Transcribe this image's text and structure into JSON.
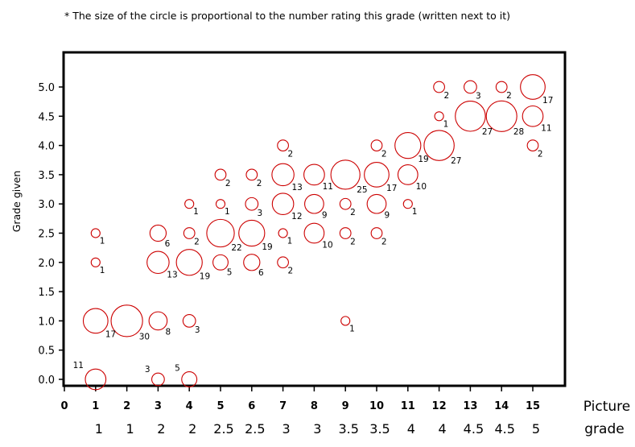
{
  "chart_data": {
    "type": "scatter",
    "title": "* The size of the circle is proportional to the number rating this grade (written next to it)",
    "xlabel": [
      "Picture",
      "grade"
    ],
    "ylabel": "Grade given",
    "xlim": [
      0,
      16
    ],
    "ylim": [
      -0.1,
      5.45
    ],
    "x_ticks": [
      0,
      1,
      2,
      3,
      4,
      5,
      6,
      7,
      8,
      9,
      10,
      11,
      12,
      13,
      14,
      15
    ],
    "y_ticks": [
      "0.0",
      "0.5",
      "1.0",
      "1.5",
      "2.0",
      "2.5",
      "3.0",
      "3.5",
      "4.0",
      "4.5",
      "5.0"
    ],
    "picture_grades": [
      "1",
      "1",
      "2",
      "2",
      "2.5",
      "2.5",
      "3",
      "3",
      "3.5",
      "3.5",
      "4",
      "4",
      "4.5",
      "4.5",
      "5"
    ],
    "grid": false,
    "points": [
      {
        "x": 1,
        "y": 0.0,
        "n": 11
      },
      {
        "x": 1,
        "y": 1.0,
        "n": 17
      },
      {
        "x": 1,
        "y": 2.0,
        "n": 1
      },
      {
        "x": 1,
        "y": 2.5,
        "n": 1
      },
      {
        "x": 2,
        "y": 1.0,
        "n": 30
      },
      {
        "x": 3,
        "y": 0.0,
        "n": 3
      },
      {
        "x": 3,
        "y": 1.0,
        "n": 8
      },
      {
        "x": 3,
        "y": 2.0,
        "n": 13
      },
      {
        "x": 3,
        "y": 2.5,
        "n": 6
      },
      {
        "x": 4,
        "y": 0.0,
        "n": 5
      },
      {
        "x": 4,
        "y": 1.0,
        "n": 3
      },
      {
        "x": 4,
        "y": 2.0,
        "n": 19
      },
      {
        "x": 4,
        "y": 2.5,
        "n": 2
      },
      {
        "x": 4,
        "y": 3.0,
        "n": 1
      },
      {
        "x": 5,
        "y": 2.0,
        "n": 5
      },
      {
        "x": 5,
        "y": 2.5,
        "n": 22
      },
      {
        "x": 5,
        "y": 3.0,
        "n": 1
      },
      {
        "x": 5,
        "y": 3.5,
        "n": 2
      },
      {
        "x": 6,
        "y": 2.0,
        "n": 6
      },
      {
        "x": 6,
        "y": 2.5,
        "n": 19
      },
      {
        "x": 6,
        "y": 3.0,
        "n": 3
      },
      {
        "x": 6,
        "y": 3.5,
        "n": 2
      },
      {
        "x": 7,
        "y": 2.0,
        "n": 2
      },
      {
        "x": 7,
        "y": 2.5,
        "n": 1
      },
      {
        "x": 7,
        "y": 3.0,
        "n": 12
      },
      {
        "x": 7,
        "y": 3.5,
        "n": 13
      },
      {
        "x": 7,
        "y": 4.0,
        "n": 2
      },
      {
        "x": 8,
        "y": 2.5,
        "n": 10
      },
      {
        "x": 8,
        "y": 3.0,
        "n": 9
      },
      {
        "x": 8,
        "y": 3.5,
        "n": 11
      },
      {
        "x": 9,
        "y": 1.0,
        "n": 1
      },
      {
        "x": 9,
        "y": 2.5,
        "n": 2
      },
      {
        "x": 9,
        "y": 3.0,
        "n": 2
      },
      {
        "x": 9,
        "y": 3.5,
        "n": 25
      },
      {
        "x": 10,
        "y": 2.5,
        "n": 2
      },
      {
        "x": 10,
        "y": 3.0,
        "n": 9
      },
      {
        "x": 10,
        "y": 3.5,
        "n": 17
      },
      {
        "x": 10,
        "y": 4.0,
        "n": 2
      },
      {
        "x": 11,
        "y": 3.0,
        "n": 1
      },
      {
        "x": 11,
        "y": 3.5,
        "n": 10
      },
      {
        "x": 11,
        "y": 4.0,
        "n": 19
      },
      {
        "x": 12,
        "y": 4.0,
        "n": 27
      },
      {
        "x": 12,
        "y": 4.5,
        "n": 1
      },
      {
        "x": 12,
        "y": 5.0,
        "n": 2
      },
      {
        "x": 13,
        "y": 4.5,
        "n": 27
      },
      {
        "x": 13,
        "y": 5.0,
        "n": 3
      },
      {
        "x": 14,
        "y": 4.5,
        "n": 28
      },
      {
        "x": 14,
        "y": 5.0,
        "n": 2
      },
      {
        "x": 15,
        "y": 4.0,
        "n": 2
      },
      {
        "x": 15,
        "y": 4.5,
        "n": 11
      },
      {
        "x": 15,
        "y": 5.0,
        "n": 17
      }
    ],
    "colors": {
      "circle": "#cc0000",
      "frame": "#000000",
      "text": "#000000"
    }
  }
}
